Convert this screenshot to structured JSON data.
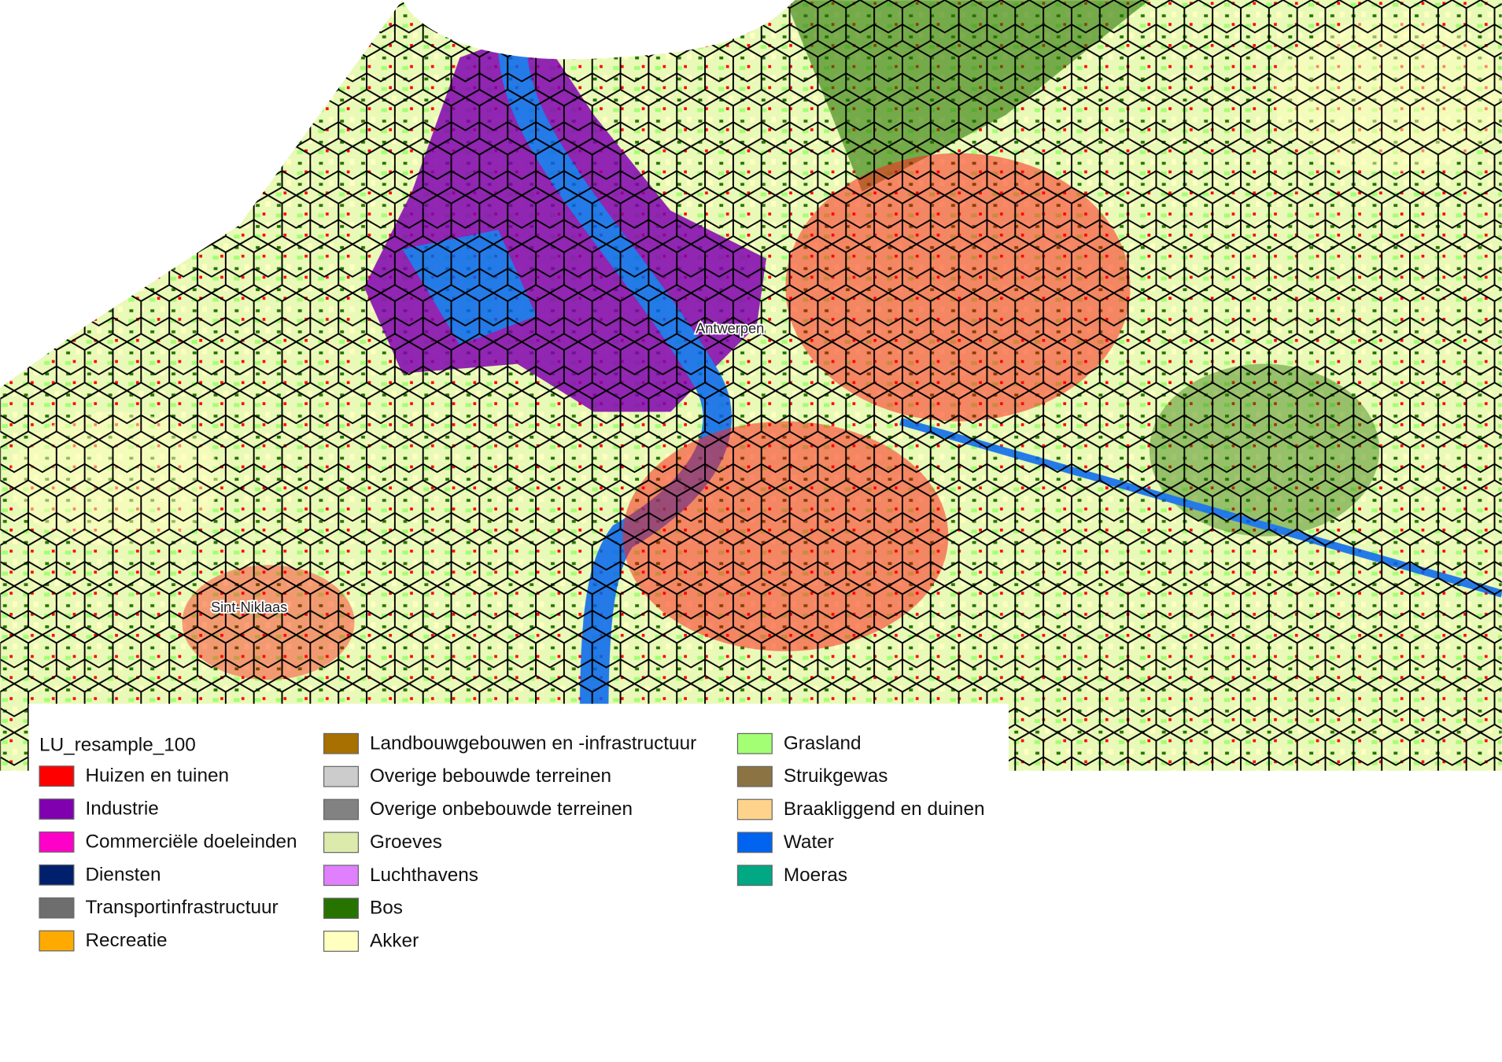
{
  "map": {
    "places": [
      "Antwerpen",
      "Sint-Niklaas"
    ],
    "legend": {
      "title": "LU_resample_100",
      "columns": [
        [
          {
            "label": "Huizen en tuinen",
            "color": "#ff0000"
          },
          {
            "label": "Industrie",
            "color": "#8000b0"
          },
          {
            "label": "Commerciële doeleinden",
            "color": "#ff00c8"
          },
          {
            "label": "Diensten",
            "color": "#00206e"
          },
          {
            "label": "Transportinfrastructuur",
            "color": "#6e6e6e"
          },
          {
            "label": "Recreatie",
            "color": "#ffaa00"
          }
        ],
        [
          {
            "label": "Landbouwgebouwen en -infrastructuur",
            "color": "#a87000"
          },
          {
            "label": "Overige bebouwde terreinen",
            "color": "#cccccc"
          },
          {
            "label": "Overige onbebouwde terreinen",
            "color": "#828282"
          },
          {
            "label": "Groeves",
            "color": "#dcebab"
          },
          {
            "label": "Luchthavens",
            "color": "#e080ff"
          },
          {
            "label": "Bos",
            "color": "#267300"
          },
          {
            "label": "Akker",
            "color": "#ffffc0"
          }
        ],
        [
          {
            "label": "Grasland",
            "color": "#a3ff73"
          },
          {
            "label": "Struikgewas",
            "color": "#8b7344"
          },
          {
            "label": "Braakliggend en duinen",
            "color": "#ffd38c"
          },
          {
            "label": "Water",
            "color": "#0064f0"
          },
          {
            "label": "Moeras",
            "color": "#00a884"
          }
        ]
      ]
    }
  }
}
